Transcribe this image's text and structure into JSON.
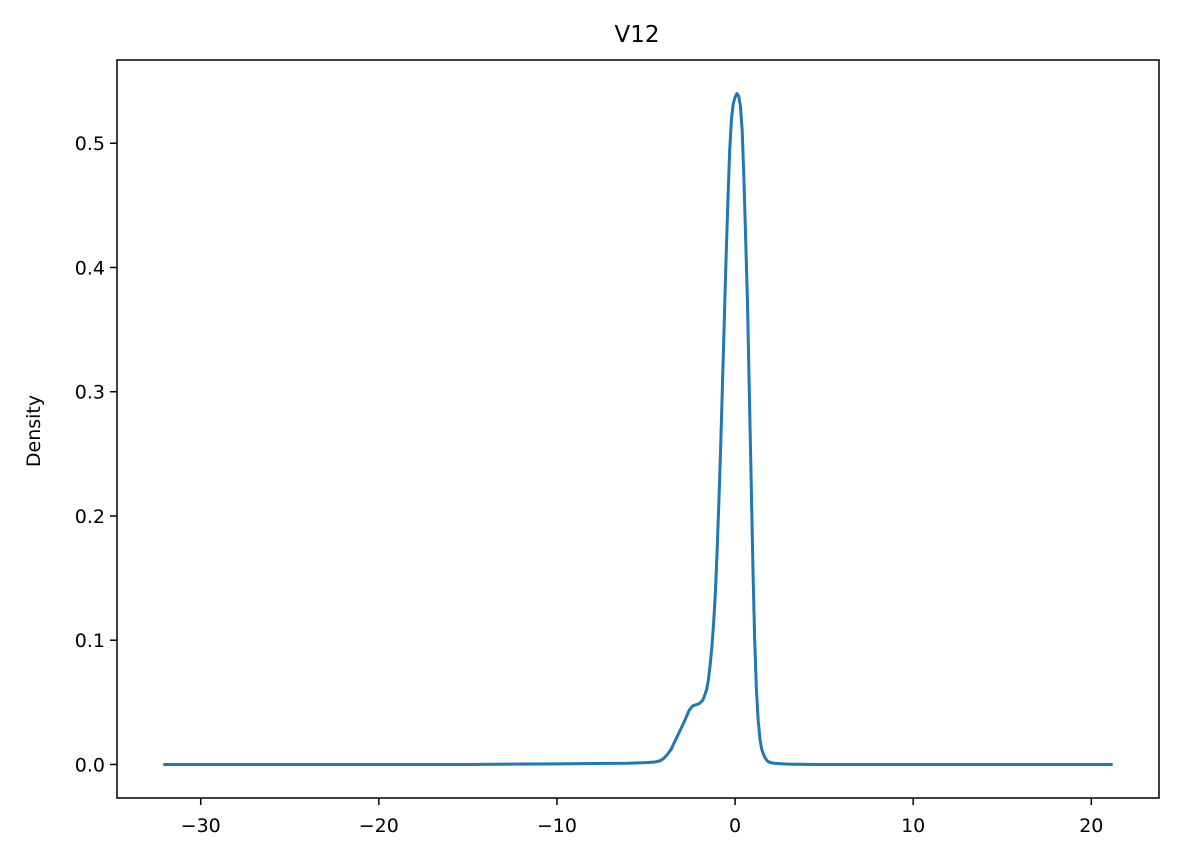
{
  "chart_data": {
    "type": "line",
    "title": "V12",
    "xlabel": "",
    "ylabel": "Density",
    "xlim": [
      -34.7,
      23.8
    ],
    "ylim": [
      -0.027,
      0.567
    ],
    "x_ticks": [
      -30,
      -20,
      -10,
      0,
      10,
      20
    ],
    "x_tick_labels": [
      "−30",
      "−20",
      "−10",
      "0",
      "10",
      "20"
    ],
    "y_ticks": [
      0.0,
      0.1,
      0.2,
      0.3,
      0.4,
      0.5
    ],
    "y_tick_labels": [
      "0.0",
      "0.1",
      "0.2",
      "0.3",
      "0.4",
      "0.5"
    ],
    "grid": false,
    "colors": {
      "line": "#1f77b4"
    },
    "series": [
      {
        "x": [
          -32.1,
          -25,
          -20,
          -15,
          -10,
          -8,
          -6,
          -5,
          -4.5,
          -4.2,
          -4.0,
          -3.8,
          -3.6,
          -3.4,
          -3.2,
          -3.0,
          -2.8,
          -2.6,
          -2.5,
          -2.4,
          -2.2,
          -2.0,
          -1.8,
          -1.6,
          -1.5,
          -1.4,
          -1.3,
          -1.2,
          -1.1,
          -1.0,
          -0.9,
          -0.8,
          -0.7,
          -0.6,
          -0.5,
          -0.4,
          -0.3,
          -0.2,
          -0.1,
          0.0,
          0.1,
          0.2,
          0.3,
          0.4,
          0.5,
          0.6,
          0.7,
          0.8,
          0.9,
          1.0,
          1.1,
          1.2,
          1.3,
          1.4,
          1.5,
          1.6,
          1.7,
          1.8,
          1.9,
          2.0,
          2.2,
          2.4,
          2.7,
          3.0,
          3.5,
          4.0,
          5.0,
          7.0,
          10.0,
          15.0,
          21.2
        ],
        "y": [
          0.0,
          0.0,
          0.0,
          0.0,
          0.0005,
          0.0008,
          0.001,
          0.0015,
          0.002,
          0.003,
          0.005,
          0.008,
          0.012,
          0.018,
          0.024,
          0.03,
          0.036,
          0.043,
          0.045,
          0.047,
          0.048,
          0.049,
          0.052,
          0.06,
          0.068,
          0.08,
          0.095,
          0.115,
          0.14,
          0.175,
          0.215,
          0.26,
          0.31,
          0.36,
          0.41,
          0.455,
          0.495,
          0.52,
          0.532,
          0.537,
          0.54,
          0.538,
          0.53,
          0.51,
          0.47,
          0.42,
          0.37,
          0.3,
          0.23,
          0.16,
          0.1,
          0.06,
          0.035,
          0.02,
          0.012,
          0.008,
          0.005,
          0.003,
          0.002,
          0.0015,
          0.001,
          0.0008,
          0.0005,
          0.0003,
          0.0002,
          0.0001,
          0.0,
          0.0,
          0.0,
          0.0,
          0.0
        ]
      }
    ]
  }
}
